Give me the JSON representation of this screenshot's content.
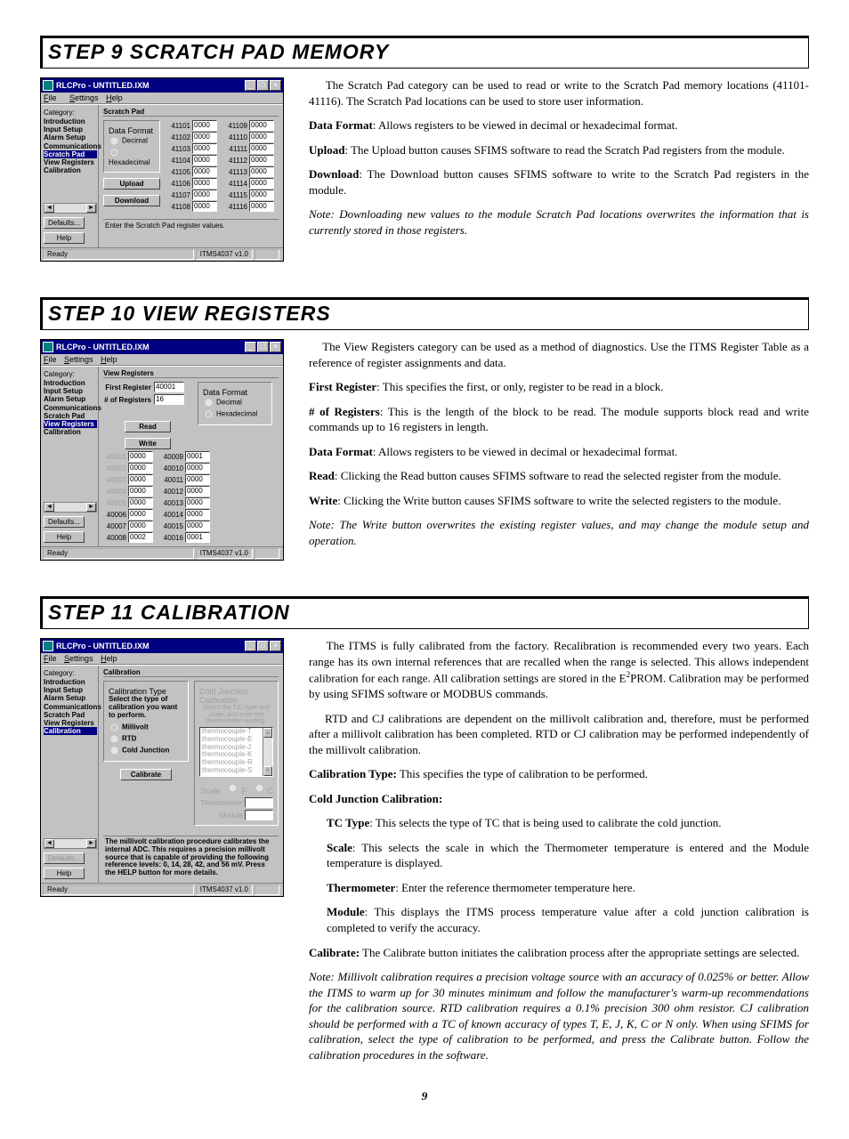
{
  "page_number": "9",
  "steps": [
    {
      "title": "STEP 9  SCRATCH PAD MEMORY",
      "paragraphs": [
        {
          "indent": true,
          "text": "The Scratch Pad category can be used to read or write to the Scratch Pad memory locations (41101-41116). The Scratch Pad locations can be used to store user information."
        },
        {
          "bold_lead": "Data Format",
          "text": ": Allows registers to be viewed in decimal or hexadecimal format."
        },
        {
          "bold_lead": "Upload",
          "text": ": The Upload button causes SFIMS software to read the Scratch Pad registers from the module."
        },
        {
          "bold_lead": "Download",
          "text": ": The Download button causes SFIMS software to write to the Scratch Pad registers in the module."
        },
        {
          "note": true,
          "text": "Note: Downloading new values to the module Scratch Pad locations overwrites the information that is currently stored in those registers."
        }
      ],
      "app": {
        "window_title": "RLCPro - UNTITLED.IXM",
        "menus": [
          "File",
          "Settings",
          "Help"
        ],
        "category_label": "Category:",
        "header": "Scratch Pad",
        "categories": [
          "Introduction",
          "Input Setup",
          "Alarm Setup",
          "Communications",
          "Scratch Pad",
          "View Registers",
          "Calibration"
        ],
        "selected_index": 4,
        "sidebar_btns": [
          "Defaults...",
          "Help"
        ],
        "group_title": "Data Format",
        "radios": [
          {
            "label": "Decimal",
            "checked": false
          },
          {
            "label": "Hexadecimal",
            "checked": true
          }
        ],
        "action_btns": [
          "Upload",
          "Download"
        ],
        "reg_left": [
          {
            "lbl": "41101",
            "val": "0000"
          },
          {
            "lbl": "41102",
            "val": "0000"
          },
          {
            "lbl": "41103",
            "val": "0000"
          },
          {
            "lbl": "41104",
            "val": "0000"
          },
          {
            "lbl": "41105",
            "val": "0000"
          },
          {
            "lbl": "41106",
            "val": "0000"
          },
          {
            "lbl": "41107",
            "val": "0000"
          },
          {
            "lbl": "41108",
            "val": "0000"
          }
        ],
        "reg_right": [
          {
            "lbl": "41109",
            "val": "0000"
          },
          {
            "lbl": "41110",
            "val": "0000"
          },
          {
            "lbl": "41111",
            "val": "0000"
          },
          {
            "lbl": "41112",
            "val": "0000"
          },
          {
            "lbl": "41113",
            "val": "0000"
          },
          {
            "lbl": "41114",
            "val": "0000"
          },
          {
            "lbl": "41115",
            "val": "0000"
          },
          {
            "lbl": "41116",
            "val": "0000"
          }
        ],
        "hint": "Enter the Scratch Pad register values.",
        "status_ready": "Ready",
        "status_ver": "ITMS4037 v1.0"
      }
    },
    {
      "title": "STEP 10  VIEW REGISTERS",
      "paragraphs": [
        {
          "indent": true,
          "text": "The View Registers category can be used as a method of diagnostics. Use the ITMS Register Table as a reference of register assignments and data."
        },
        {
          "bold_lead": "First Register",
          "text": ": This specifies the first, or only, register to be read in a block."
        },
        {
          "bold_lead": "# of Registers",
          "text": ": This is the length of the block to be read. The module supports block read and write commands up to 16 registers in length."
        },
        {
          "bold_lead": "Data Format",
          "text": ": Allows registers to be viewed in decimal or hexadecimal format."
        },
        {
          "bold_lead": "Read",
          "text": ": Clicking the Read button causes SFIMS software to read the selected register from the module."
        },
        {
          "bold_lead": "Write",
          "text": ": Clicking the Write button causes SFIMS software to write the selected registers to the module."
        },
        {
          "note": true,
          "text": "Note: The Write button overwrites the existing register values, and may change the module setup and operation."
        }
      ],
      "app": {
        "window_title": "RLCPro - UNTITLED.IXM",
        "menus": [
          "File",
          "Settings",
          "Help"
        ],
        "category_label": "Category:",
        "header": "View Registers",
        "categories": [
          "Introduction",
          "Input Setup",
          "Alarm Setup",
          "Communications",
          "Scratch Pad",
          "View Registers",
          "Calibration"
        ],
        "selected_index": 5,
        "sidebar_btns": [
          "Defaults...",
          "Help"
        ],
        "first_reg_label": "First Register",
        "first_reg_value": "40001",
        "num_reg_label": "# of Registers",
        "num_reg_value": "16",
        "group_title": "Data Format",
        "radios": [
          {
            "label": "Decimal",
            "checked": false
          },
          {
            "label": "Hexadecimal",
            "checked": true
          }
        ],
        "action_btns": [
          "Read",
          "Write"
        ],
        "reg_left": [
          {
            "lbl": "40001",
            "val": "0000",
            "dim": true
          },
          {
            "lbl": "40002",
            "val": "0000",
            "dim": true
          },
          {
            "lbl": "40003",
            "val": "0000",
            "dim": true
          },
          {
            "lbl": "40004",
            "val": "0000",
            "dim": true
          },
          {
            "lbl": "40005",
            "val": "0000",
            "dim": true
          },
          {
            "lbl": "40006",
            "val": "0000"
          },
          {
            "lbl": "40007",
            "val": "0000"
          },
          {
            "lbl": "40008",
            "val": "0002"
          }
        ],
        "reg_right": [
          {
            "lbl": "40009",
            "val": "0001"
          },
          {
            "lbl": "40010",
            "val": "0000"
          },
          {
            "lbl": "40011",
            "val": "0000"
          },
          {
            "lbl": "40012",
            "val": "0000"
          },
          {
            "lbl": "40013",
            "val": "0000"
          },
          {
            "lbl": "40014",
            "val": "0000"
          },
          {
            "lbl": "40015",
            "val": "0000"
          },
          {
            "lbl": "40016",
            "val": "0001"
          }
        ],
        "status_ready": "Ready",
        "status_ver": "ITMS4037 v1.0"
      }
    },
    {
      "title": "STEP 11  CALIBRATION",
      "paragraphs": [
        {
          "indent": true,
          "html": "The ITMS is fully calibrated from the factory. Recalibration is recommended every two years. Each range has its own internal references that are recalled when the range is selected. This allows independent calibration for each range. All calibration settings are stored in the E<sup>2</sup>PROM. Calibration may be performed by using SFIMS software or MODBUS commands."
        },
        {
          "indent": true,
          "text": "RTD and CJ calibrations are dependent on the millivolt calibration and, therefore, must be performed after a millivolt calibration has been completed. RTD or CJ calibration may be performed independently of the millivolt calibration."
        },
        {
          "bold_lead": "Calibration Type:",
          "text": " This specifies the type of calibration to be performed."
        },
        {
          "bold_lead": "Cold Junction Calibration:",
          "text": ""
        },
        {
          "sub": true,
          "bold_lead": "TC Type",
          "text": ": This selects the type of TC that is being used to calibrate the cold junction."
        },
        {
          "sub": true,
          "bold_lead": "Scale",
          "text": ": This selects the scale in which the Thermometer temperature is entered and the Module temperature is displayed."
        },
        {
          "sub": true,
          "bold_lead": "Thermometer",
          "text": ": Enter the reference thermometer temperature here."
        },
        {
          "sub": true,
          "bold_lead": "Module",
          "text": ": This displays the ITMS process temperature value after a cold junction calibration is completed to verify the accuracy."
        },
        {
          "bold_lead": "Calibrate:",
          "text": " The Calibrate button initiates the calibration process after the appropriate settings are selected."
        },
        {
          "note": true,
          "text": "Note: Millivolt calibration requires a precision voltage source with an accuracy of 0.025% or better. Allow the ITMS to warm up for 30 minutes minimum and follow the manufacturer's warm-up recommendations for the calibration source. RTD calibration requires a 0.1% precision 300 ohm resistor. CJ calibration should be performed with a TC of known accuracy of types T, E, J, K, C or N only. When using SFIMS for calibration, select the type of calibration to be performed, and press the Calibrate button. Follow the calibration procedures in the software."
        }
      ],
      "app": {
        "window_title": "RLCPro - UNTITLED.IXM",
        "menus": [
          "File",
          "Settings",
          "Help"
        ],
        "category_label": "Category:",
        "header": "Calibration",
        "categories": [
          "Introduction",
          "Input Setup",
          "Alarm Setup",
          "Communications",
          "Scratch Pad",
          "View Registers",
          "Calibration"
        ],
        "selected_index": 6,
        "sidebar_btns": [
          "Defaults...",
          "Help"
        ],
        "group_title": "Calibration Type",
        "group_desc": "Select the type of calibration you want to perform.",
        "radios": [
          {
            "label": "Millivolt",
            "checked": true
          },
          {
            "label": "RTD",
            "checked": false
          },
          {
            "label": "Cold Junction",
            "checked": false
          }
        ],
        "action_btn": "Calibrate",
        "cj_group_title": "Cold Junction Calibration",
        "cj_desc": "Select the T.C. type and scale, and enter the thermometer reading.",
        "tc_list": [
          "thermocouple-T",
          "thermocouple-E",
          "thermocouple-J",
          "thermocouple-K",
          "thermocouple-R",
          "thermocouple-S"
        ],
        "scale_label": "Scale",
        "scale_opts": [
          "F",
          "C"
        ],
        "thermo_label": "Thermometer",
        "module_label": "Module",
        "hint": "The millivolt calibration procedure calibrates the internal ADC. This requires a precision millivolt source that is capable of providing the following reference levels: 0, 14, 28, 42, and 56 mV. Press the HELP button for more details.",
        "status_ready": "Ready",
        "status_ver": "ITMS4037 v1.0"
      }
    }
  ],
  "colors": {
    "titlebar": "#000080",
    "bg": "#c2c2c2",
    "border": "#000000",
    "text": "#000000"
  }
}
